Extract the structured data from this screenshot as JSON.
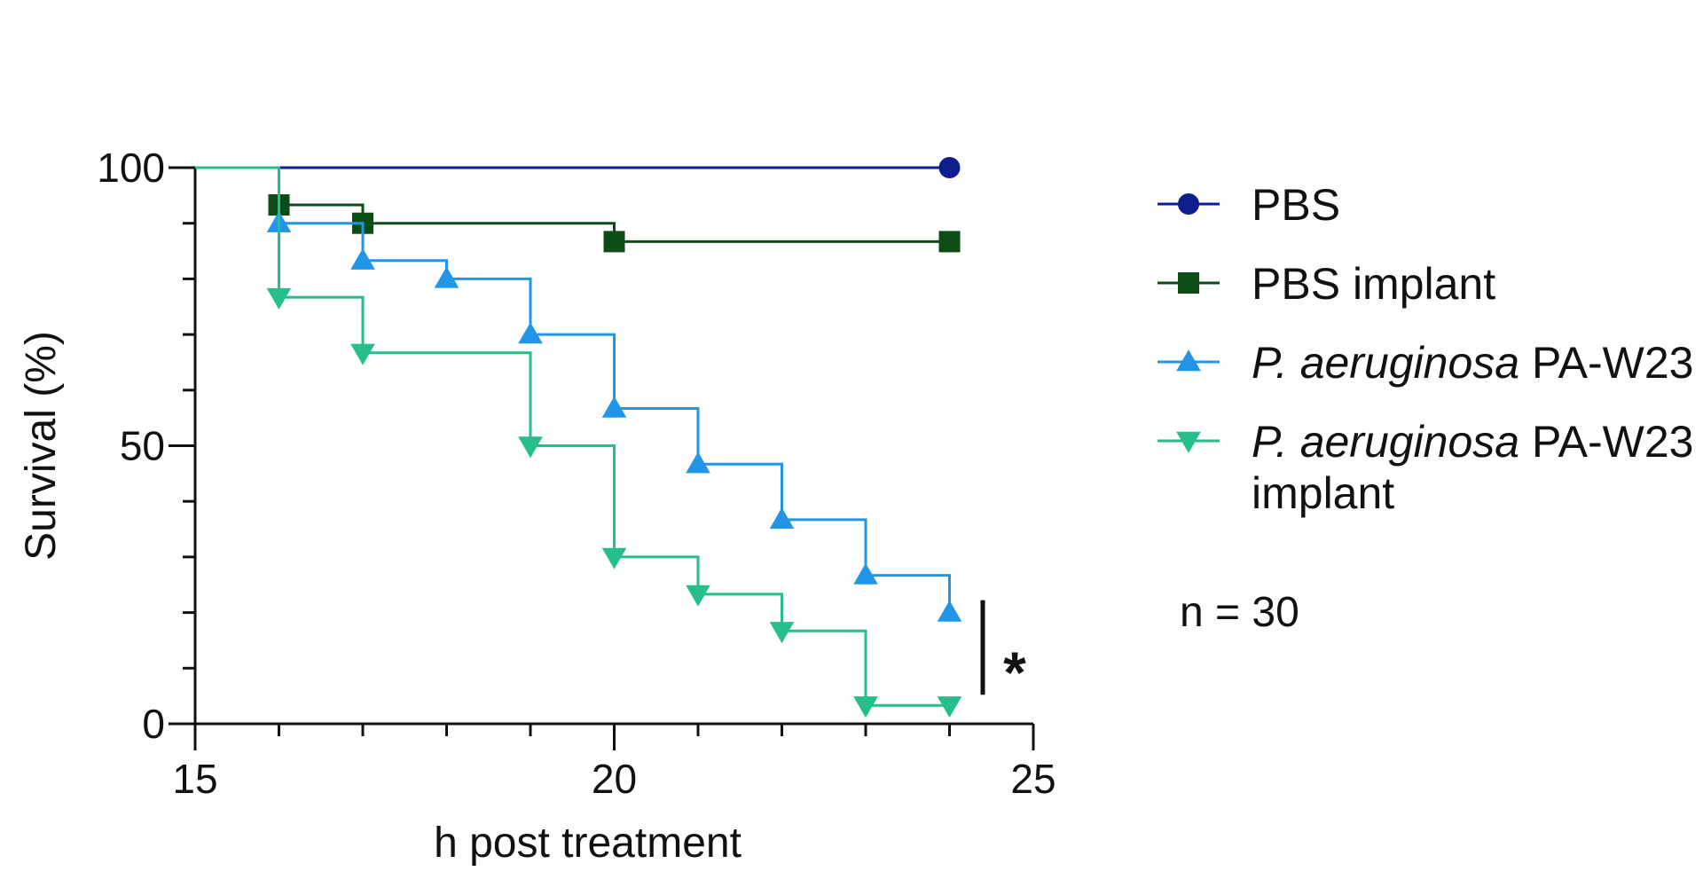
{
  "chart_data": {
    "type": "line",
    "subtype": "kaplan-meier-step",
    "title": "",
    "xlabel": "h post treatment",
    "ylabel": "Survival (%)",
    "xlim": [
      15,
      25
    ],
    "ylim": [
      0,
      100
    ],
    "x_ticks": [
      15,
      20,
      25
    ],
    "y_ticks": [
      0,
      50,
      100
    ],
    "y_minor_step": 10,
    "x_minor_step": 1,
    "grid": false,
    "legend_position": "right",
    "series": [
      {
        "name": "PBS",
        "name_italic": "",
        "name_rest": "PBS",
        "name_line2": "",
        "color": "#0d1f8c",
        "marker": "circle",
        "points": [
          [
            15,
            100
          ],
          [
            24,
            100
          ]
        ],
        "markers": [
          [
            24,
            100
          ]
        ]
      },
      {
        "name": "PBS implant",
        "name_italic": "",
        "name_rest": "PBS implant",
        "name_line2": "",
        "color": "#0b4d14",
        "marker": "square",
        "points": [
          [
            15,
            100
          ],
          [
            16,
            93.3
          ],
          [
            17,
            90
          ],
          [
            20,
            86.7
          ],
          [
            24,
            86.7
          ]
        ],
        "markers": [
          [
            16,
            93.3
          ],
          [
            17,
            90
          ],
          [
            20,
            86.7
          ],
          [
            24,
            86.7
          ]
        ]
      },
      {
        "name": "P. aeruginosa PA-W23",
        "name_italic": "P. aeruginosa",
        "name_rest": " PA-W23",
        "name_line2": "",
        "color": "#2196e8",
        "marker": "triangle-up",
        "points": [
          [
            15,
            100
          ],
          [
            16,
            90
          ],
          [
            17,
            83.3
          ],
          [
            18,
            80
          ],
          [
            19,
            70
          ],
          [
            20,
            56.7
          ],
          [
            21,
            46.7
          ],
          [
            22,
            36.7
          ],
          [
            23,
            26.7
          ],
          [
            24,
            20
          ]
        ],
        "markers": [
          [
            16,
            90
          ],
          [
            17,
            83.3
          ],
          [
            18,
            80
          ],
          [
            19,
            70
          ],
          [
            20,
            56.7
          ],
          [
            21,
            46.7
          ],
          [
            22,
            36.7
          ],
          [
            23,
            26.7
          ],
          [
            24,
            20
          ]
        ]
      },
      {
        "name": "P. aeruginosa PA-W23 implant",
        "name_italic": "P. aeruginosa",
        "name_rest": " PA-W23",
        "name_line2": "implant",
        "color": "#26be8a",
        "marker": "triangle-down",
        "points": [
          [
            15,
            100
          ],
          [
            16,
            76.7
          ],
          [
            17,
            66.7
          ],
          [
            19,
            50
          ],
          [
            20,
            30
          ],
          [
            21,
            23.3
          ],
          [
            22,
            16.7
          ],
          [
            23,
            3.3
          ],
          [
            24,
            3.3
          ]
        ],
        "markers": [
          [
            16,
            76.7
          ],
          [
            17,
            66.7
          ],
          [
            19,
            50
          ],
          [
            20,
            30
          ],
          [
            21,
            23.3
          ],
          [
            22,
            16.7
          ],
          [
            23,
            3.3
          ],
          [
            24,
            3.3
          ]
        ]
      }
    ],
    "annotations": {
      "sample_size": "n = 30",
      "significance": "*",
      "significance_span": [
        3.3,
        20
      ]
    }
  }
}
